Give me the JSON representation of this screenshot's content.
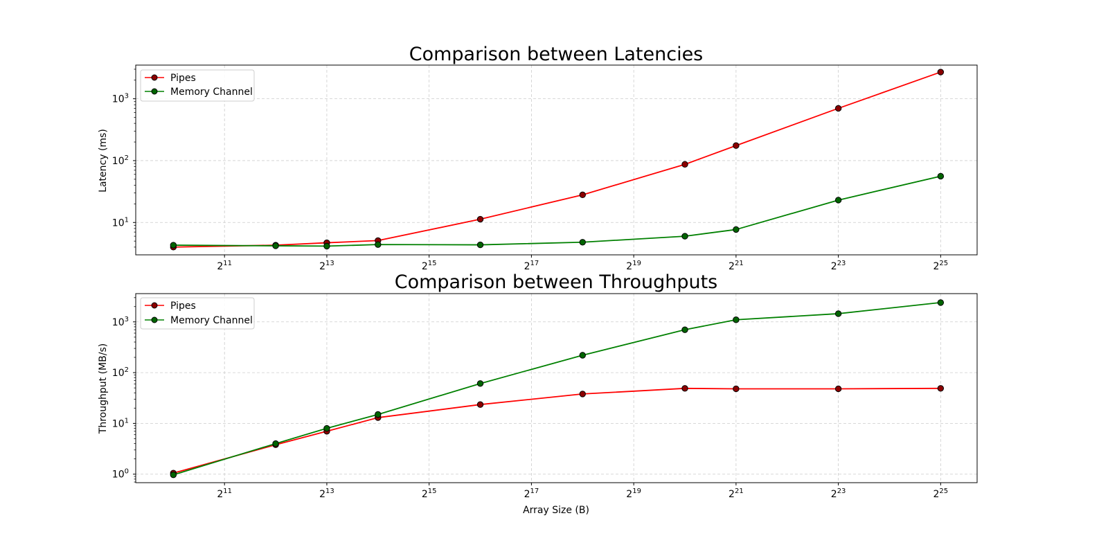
{
  "figure": {
    "background": "#ffffff",
    "xlabel": "Array Size (B)"
  },
  "colors": {
    "pipes": "#ff0000",
    "memory_channel": "#008000",
    "marker_edge": "#000000",
    "grid": "#cccccc"
  },
  "chart_data": [
    {
      "type": "line",
      "title": "Comparison between Latencies",
      "xlabel": "",
      "ylabel": "Latency (ms)",
      "x_scale": "log2",
      "y_scale": "log10",
      "x": [
        1024,
        4096,
        8192,
        16384,
        65536,
        262144,
        1048576,
        2097152,
        8388608,
        33554432
      ],
      "xlim": [
        615,
        55000000
      ],
      "ylim": [
        3.0,
        3500
      ],
      "x_ticks": [
        {
          "value": 2048,
          "base": "2",
          "exp": "11"
        },
        {
          "value": 8192,
          "base": "2",
          "exp": "13"
        },
        {
          "value": 32768,
          "base": "2",
          "exp": "15"
        },
        {
          "value": 131072,
          "base": "2",
          "exp": "17"
        },
        {
          "value": 524288,
          "base": "2",
          "exp": "19"
        },
        {
          "value": 2097152,
          "base": "2",
          "exp": "21"
        },
        {
          "value": 8388608,
          "base": "2",
          "exp": "23"
        },
        {
          "value": 33554432,
          "base": "2",
          "exp": "25"
        }
      ],
      "y_ticks": [
        {
          "value": 10,
          "base": "10",
          "exp": "1"
        },
        {
          "value": 100,
          "base": "10",
          "exp": "2"
        },
        {
          "value": 1000,
          "base": "10",
          "exp": "3"
        }
      ],
      "series": [
        {
          "name": "Pipes",
          "color": "#ff0000",
          "values": [
            4.0,
            4.3,
            4.7,
            5.1,
            11.3,
            28,
            87,
            175,
            700,
            2700
          ]
        },
        {
          "name": "Memory Channel",
          "color": "#008000",
          "values": [
            4.3,
            4.2,
            4.15,
            4.4,
            4.35,
            4.8,
            6.0,
            7.7,
            23,
            56
          ]
        }
      ],
      "legend": "upper-left",
      "grid": true
    },
    {
      "type": "line",
      "title": "Comparison between Throughputs",
      "xlabel": "Array Size (B)",
      "ylabel": "Throughput (MB/s)",
      "x_scale": "log2",
      "y_scale": "log10",
      "x": [
        1024,
        4096,
        8192,
        16384,
        65536,
        262144,
        1048576,
        2097152,
        8388608,
        33554432
      ],
      "xlim": [
        615,
        55000000
      ],
      "ylim": [
        0.68,
        3600
      ],
      "x_ticks": [
        {
          "value": 2048,
          "base": "2",
          "exp": "11"
        },
        {
          "value": 8192,
          "base": "2",
          "exp": "13"
        },
        {
          "value": 32768,
          "base": "2",
          "exp": "15"
        },
        {
          "value": 131072,
          "base": "2",
          "exp": "17"
        },
        {
          "value": 524288,
          "base": "2",
          "exp": "19"
        },
        {
          "value": 2097152,
          "base": "2",
          "exp": "21"
        },
        {
          "value": 8388608,
          "base": "2",
          "exp": "23"
        },
        {
          "value": 33554432,
          "base": "2",
          "exp": "25"
        }
      ],
      "y_ticks": [
        {
          "value": 1,
          "base": "10",
          "exp": "0"
        },
        {
          "value": 10,
          "base": "10",
          "exp": "1"
        },
        {
          "value": 100,
          "base": "10",
          "exp": "2"
        },
        {
          "value": 1000,
          "base": "10",
          "exp": "3"
        }
      ],
      "series": [
        {
          "name": "Pipes",
          "color": "#ff0000",
          "values": [
            1.05,
            3.8,
            7.0,
            13.0,
            23.5,
            38,
            49,
            48,
            48,
            49
          ]
        },
        {
          "name": "Memory Channel",
          "color": "#008000",
          "values": [
            0.97,
            4.0,
            8.0,
            15.0,
            61,
            220,
            700,
            1100,
            1450,
            2400
          ]
        }
      ],
      "legend": "upper-left",
      "grid": true
    }
  ]
}
